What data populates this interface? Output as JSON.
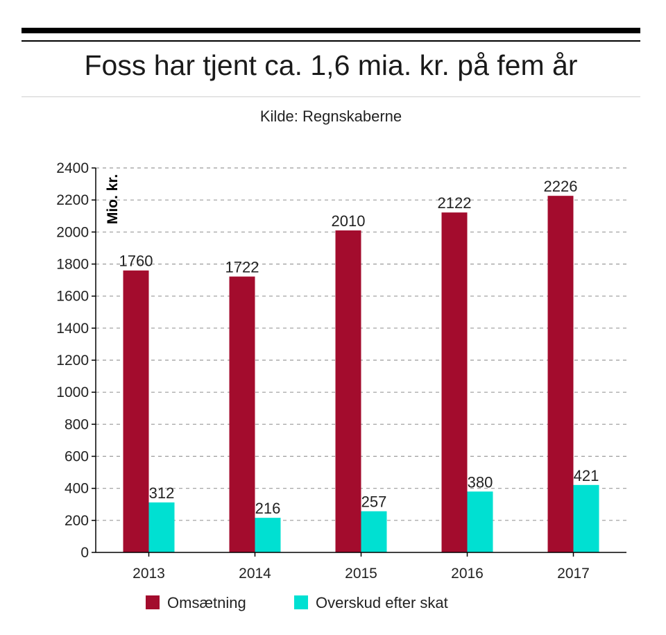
{
  "colors": {
    "omsaetning": "#a30c2d",
    "overskud": "#00e0d2",
    "grid": "#9a9a9a",
    "axis": "#000000"
  },
  "chart_data": {
    "type": "bar",
    "title": "Foss har tjent ca. 1,6 mia. kr. på fem år",
    "subtitle": "Kilde: Regnskaberne",
    "ylabel": "Mio. kr.",
    "ylim": [
      0,
      2400
    ],
    "yticks": [
      0,
      200,
      400,
      600,
      800,
      1000,
      1200,
      1400,
      1600,
      1800,
      2000,
      2200,
      2400
    ],
    "grid": true,
    "legend": "bottom",
    "categories": [
      "2013",
      "2014",
      "2015",
      "2016",
      "2017"
    ],
    "series": [
      {
        "name": "Omsætning",
        "values": [
          1760,
          1722,
          2010,
          2122,
          2226
        ]
      },
      {
        "name": "Overskud efter skat",
        "values": [
          312,
          216,
          257,
          380,
          421
        ]
      }
    ]
  }
}
